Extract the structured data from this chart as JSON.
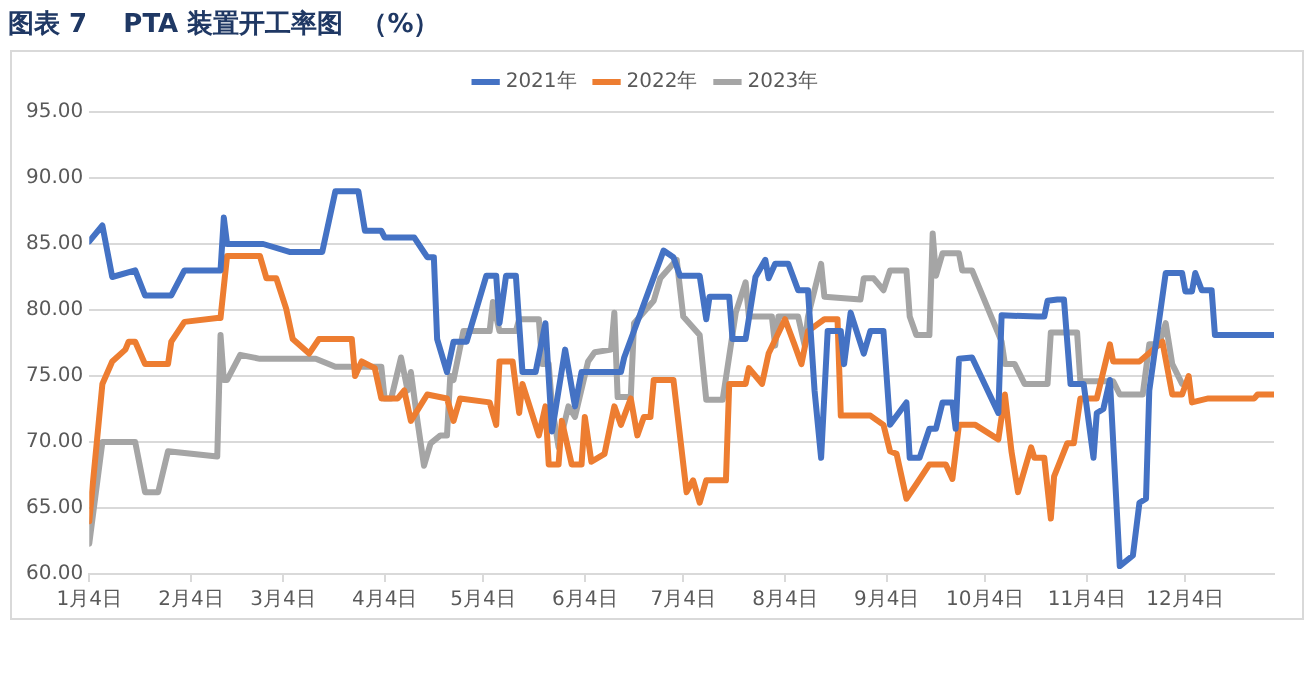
{
  "chart_data": {
    "type": "line",
    "title": "图表 7    PTA 装置开工率图  （%）",
    "xlim": [
      "--01-04",
      "--12-31"
    ],
    "xticks": [
      {
        "value": "--01-04",
        "label": "1月4日"
      },
      {
        "value": "--02-04",
        "label": "2月4日"
      },
      {
        "value": "--03-04",
        "label": "3月4日"
      },
      {
        "value": "--04-04",
        "label": "4月4日"
      },
      {
        "value": "--05-04",
        "label": "5月4日"
      },
      {
        "value": "--06-04",
        "label": "6月4日"
      },
      {
        "value": "--07-04",
        "label": "7月4日"
      },
      {
        "value": "--08-04",
        "label": "8月4日"
      },
      {
        "value": "--09-04",
        "label": "9月4日"
      },
      {
        "value": "--10-04",
        "label": "10月4日"
      },
      {
        "value": "--11-04",
        "label": "11月4日"
      },
      {
        "value": "--12-04",
        "label": "12月4日"
      }
    ],
    "ylim": [
      60,
      95
    ],
    "yticks": [
      {
        "value": 60,
        "label": "60.00"
      },
      {
        "value": 65,
        "label": "65.00"
      },
      {
        "value": 70,
        "label": "70.00"
      },
      {
        "value": 75,
        "label": "75.00"
      },
      {
        "value": 80,
        "label": "80.00"
      },
      {
        "value": 85,
        "label": "85.00"
      },
      {
        "value": 90,
        "label": "90.00"
      },
      {
        "value": 95,
        "label": "95.00"
      }
    ],
    "grid": "y",
    "legend": "top",
    "marker": "none",
    "line_style": "solid",
    "series": [
      {
        "name": "2021年",
        "color": "#4472c4",
        "x": [
          "--01-04",
          "--01-08",
          "--01-11",
          "--01-18",
          "--01-21",
          "--01-29",
          "--02-02",
          "--02-13",
          "--02-14",
          "--02-15",
          "--02-26",
          "--03-06",
          "--03-16",
          "--03-20",
          "--03-27",
          "--03-29",
          "--04-03",
          "--04-04",
          "--04-13",
          "--04-17",
          "--04-19",
          "--04-20",
          "--04-23",
          "--04-25",
          "--04-29",
          "--05-05",
          "--05-08",
          "--05-09",
          "--05-11",
          "--05-14",
          "--05-16",
          "--05-20",
          "--05-23",
          "--05-25",
          "--05-29",
          "--06-01",
          "--06-03",
          "--06-15",
          "--06-16",
          "--06-28",
          "--07-01",
          "--07-03",
          "--07-09",
          "--07-11",
          "--07-12",
          "--07-18",
          "--07-19",
          "--07-23",
          "--07-26",
          "--07-29",
          "--07-30",
          "--08-01",
          "--08-05",
          "--08-08",
          "--08-11",
          "--08-13",
          "--08-15",
          "--08-17",
          "--08-21",
          "--08-22",
          "--08-24",
          "--08-28",
          "--08-30",
          "--09-03",
          "--09-05",
          "--09-10",
          "--09-11",
          "--09-14",
          "--09-17",
          "--09-19",
          "--09-21",
          "--09-24",
          "--09-25",
          "--09-26",
          "--09-30",
          "--10-08",
          "--10-09",
          "--10-20",
          "--10-22",
          "--10-23",
          "--10-26",
          "--10-28",
          "--10-30",
          "--11-03",
          "--11-06",
          "--11-07",
          "--11-09",
          "--11-11",
          "--11-14",
          "--11-18",
          "--11-20",
          "--11-22",
          "--11-23",
          "--11-28",
          "--12-03",
          "--12-04",
          "--12-06",
          "--12-07",
          "--12-09",
          "--12-12",
          "--12-13",
          "--12-31"
        ],
        "values": [
          85.2,
          86.4,
          82.5,
          83,
          81.1,
          81.1,
          83,
          83,
          87,
          85,
          85,
          84.4,
          84.4,
          89,
          89,
          86,
          86,
          85.5,
          85.5,
          84,
          84,
          77.8,
          75.3,
          77.6,
          77.6,
          82.6,
          82.6,
          79,
          82.6,
          82.6,
          75.3,
          75.3,
          79,
          70.8,
          77,
          72.7,
          75.3,
          75.3,
          76.4,
          84.5,
          84,
          82.6,
          82.6,
          79.3,
          81,
          81,
          77.8,
          77.8,
          82.5,
          83.8,
          82.4,
          83.5,
          83.5,
          81.5,
          81.5,
          73.9,
          68.8,
          78.4,
          78.4,
          75.9,
          79.8,
          76.7,
          78.4,
          78.4,
          71.3,
          73,
          68.8,
          68.8,
          71,
          71,
          73,
          73,
          71,
          76.3,
          76.4,
          72.2,
          79.6,
          79.5,
          79.5,
          80.7,
          80.8,
          80.8,
          74.4,
          74.4,
          68.8,
          72.2,
          72.5,
          74.7,
          60.6,
          61.4,
          65.4,
          65.7,
          73.9,
          82.8,
          82.8,
          81.4,
          81.4,
          82.8,
          81.5,
          81.5,
          78.1,
          78.1
        ]
      },
      {
        "name": "2022年",
        "color": "#ed7d31",
        "x": [
          "--01-04",
          "--01-08",
          "--01-11",
          "--01-15",
          "--01-16",
          "--01-18",
          "--01-21",
          "--01-28",
          "--01-29",
          "--02-02",
          "--02-12",
          "--02-13",
          "--02-15",
          "--02-25",
          "--02-27",
          "--03-02",
          "--03-05",
          "--03-07",
          "--03-12",
          "--03-15",
          "--03-25",
          "--03-26",
          "--03-28",
          "--04-01",
          "--04-03",
          "--04-08",
          "--04-10",
          "--04-12",
          "--04-17",
          "--04-23",
          "--04-25",
          "--04-27",
          "--05-06",
          "--05-08",
          "--05-09",
          "--05-13",
          "--05-15",
          "--05-16",
          "--05-21",
          "--05-23",
          "--05-24",
          "--05-27",
          "--05-28",
          "--05-31",
          "--06-03",
          "--06-04",
          "--06-06",
          "--06-10",
          "--06-13",
          "--06-15",
          "--06-18",
          "--06-20",
          "--06-22",
          "--06-24",
          "--06-25",
          "--07-01",
          "--07-05",
          "--07-07",
          "--07-09",
          "--07-11",
          "--07-17",
          "--07-18",
          "--07-23",
          "--07-24",
          "--07-28",
          "--07-30",
          "--08-04",
          "--08-07",
          "--08-09",
          "--08-11",
          "--08-16",
          "--08-20",
          "--08-21",
          "--08-30",
          "--09-03",
          "--09-05",
          "--09-07",
          "--09-10",
          "--09-13",
          "--09-17",
          "--09-22",
          "--09-24",
          "--09-26",
          "--10-01",
          "--10-08",
          "--10-10",
          "--10-12",
          "--10-14",
          "--10-18",
          "--10-19",
          "--10-22",
          "--10-24",
          "--10-25",
          "--10-29",
          "--10-31",
          "--11-02",
          "--11-07",
          "--11-11",
          "--11-12",
          "--11-20",
          "--11-27",
          "--11-30",
          "--12-03",
          "--12-05",
          "--12-06",
          "--12-11",
          "--12-25",
          "--12-26",
          "--12-31"
        ],
        "values": [
          64,
          74.4,
          76.1,
          77,
          77.6,
          77.6,
          75.9,
          75.9,
          77.6,
          79.1,
          79.4,
          79.4,
          84.1,
          84.1,
          82.4,
          82.4,
          80.1,
          77.8,
          76.7,
          77.8,
          77.8,
          75,
          76.1,
          75.6,
          73.3,
          73.3,
          73.9,
          71.6,
          73.6,
          73.3,
          71.6,
          73.3,
          73,
          71.3,
          76.1,
          76.1,
          72.2,
          74.4,
          70.5,
          72.7,
          68.3,
          68.3,
          71.6,
          68.3,
          68.3,
          71.9,
          68.5,
          69.1,
          72.7,
          71.3,
          73.3,
          70.5,
          71.9,
          71.9,
          74.7,
          74.7,
          66.2,
          67.1,
          65.4,
          67.1,
          67.1,
          74.4,
          74.4,
          75.6,
          74.4,
          76.7,
          79.3,
          77.3,
          75.9,
          78.4,
          79.3,
          79.3,
          72,
          72,
          71.3,
          69.3,
          69.1,
          65.7,
          66.8,
          68.3,
          68.3,
          67.2,
          71.3,
          71.3,
          70.2,
          73.6,
          69.3,
          66.2,
          69.6,
          68.8,
          68.8,
          64.2,
          67.4,
          69.9,
          69.9,
          73.3,
          73.3,
          77.4,
          76.1,
          76.1,
          77.6,
          73.6,
          73.6,
          75,
          73,
          73.3,
          73.3,
          73.6,
          73.6
        ]
      },
      {
        "name": "2023年",
        "color": "#a5a5a5",
        "x": [
          "--01-04",
          "--01-08",
          "--01-18",
          "--01-21",
          "--01-25",
          "--01-28",
          "--02-12",
          "--02-13",
          "--02-14",
          "--02-15",
          "--02-19",
          "--02-25",
          "--03-14",
          "--03-20",
          "--04-03",
          "--04-04",
          "--04-06",
          "--04-09",
          "--04-11",
          "--04-12",
          "--04-14",
          "--04-16",
          "--04-18",
          "--04-21",
          "--04-23",
          "--04-24",
          "--04-25",
          "--04-28",
          "--05-06",
          "--05-07",
          "--05-09",
          "--05-14",
          "--05-15",
          "--05-21",
          "--05-22",
          "--05-24",
          "--05-25",
          "--05-27",
          "--05-30",
          "--06-01",
          "--06-05",
          "--06-07",
          "--06-12",
          "--06-13",
          "--06-14",
          "--06-18",
          "--06-19",
          "--06-25",
          "--06-27",
          "--07-02",
          "--07-04",
          "--07-09",
          "--07-11",
          "--07-16",
          "--07-20",
          "--07-23",
          "--07-24",
          "--07-31",
          "--08-01",
          "--08-02",
          "--08-08",
          "--08-10",
          "--08-11",
          "--08-15",
          "--08-16",
          "--08-27",
          "--08-28",
          "--08-31",
          "--09-03",
          "--09-05",
          "--09-10",
          "--09-11",
          "--09-13",
          "--09-17",
          "--09-18",
          "--09-19",
          "--09-21",
          "--09-26",
          "--09-27",
          "--09-30",
          "--10-09",
          "--10-10",
          "--10-13",
          "--10-16",
          "--10-23",
          "--10-24",
          "--11-01",
          "--11-02",
          "--11-12",
          "--11-14",
          "--11-21",
          "--11-23",
          "--11-26",
          "--11-28",
          "--11-30",
          "--12-03"
        ],
        "values": [
          62.3,
          70,
          70,
          66.2,
          66.2,
          69.3,
          68.9,
          78.1,
          74.7,
          74.7,
          76.6,
          76.3,
          76.3,
          75.7,
          75.7,
          73.3,
          73.3,
          76.4,
          73.9,
          75.3,
          71.6,
          68.2,
          69.9,
          70.5,
          70.5,
          75,
          74.7,
          78.4,
          78.4,
          80.6,
          78.4,
          78.4,
          79.3,
          79.3,
          75.9,
          75.9,
          72.7,
          69.6,
          72.7,
          71.9,
          76.1,
          76.8,
          77,
          79.8,
          73.4,
          73.4,
          79,
          80.7,
          82.4,
          83.8,
          79.5,
          78.1,
          73.2,
          73.2,
          79.8,
          82.1,
          79.5,
          79.5,
          77.3,
          79.5,
          79.5,
          77.3,
          79.5,
          83.5,
          81,
          80.8,
          82.4,
          82.4,
          81.5,
          83,
          83,
          79.5,
          78.1,
          78.1,
          85.8,
          82.6,
          84.3,
          84.3,
          83,
          83,
          77.6,
          75.9,
          75.9,
          74.4,
          74.4,
          78.3,
          78.3,
          74.6,
          74.6,
          73.6,
          73.6,
          77.4,
          77.4,
          79,
          75.9,
          74.4
        ]
      }
    ]
  }
}
